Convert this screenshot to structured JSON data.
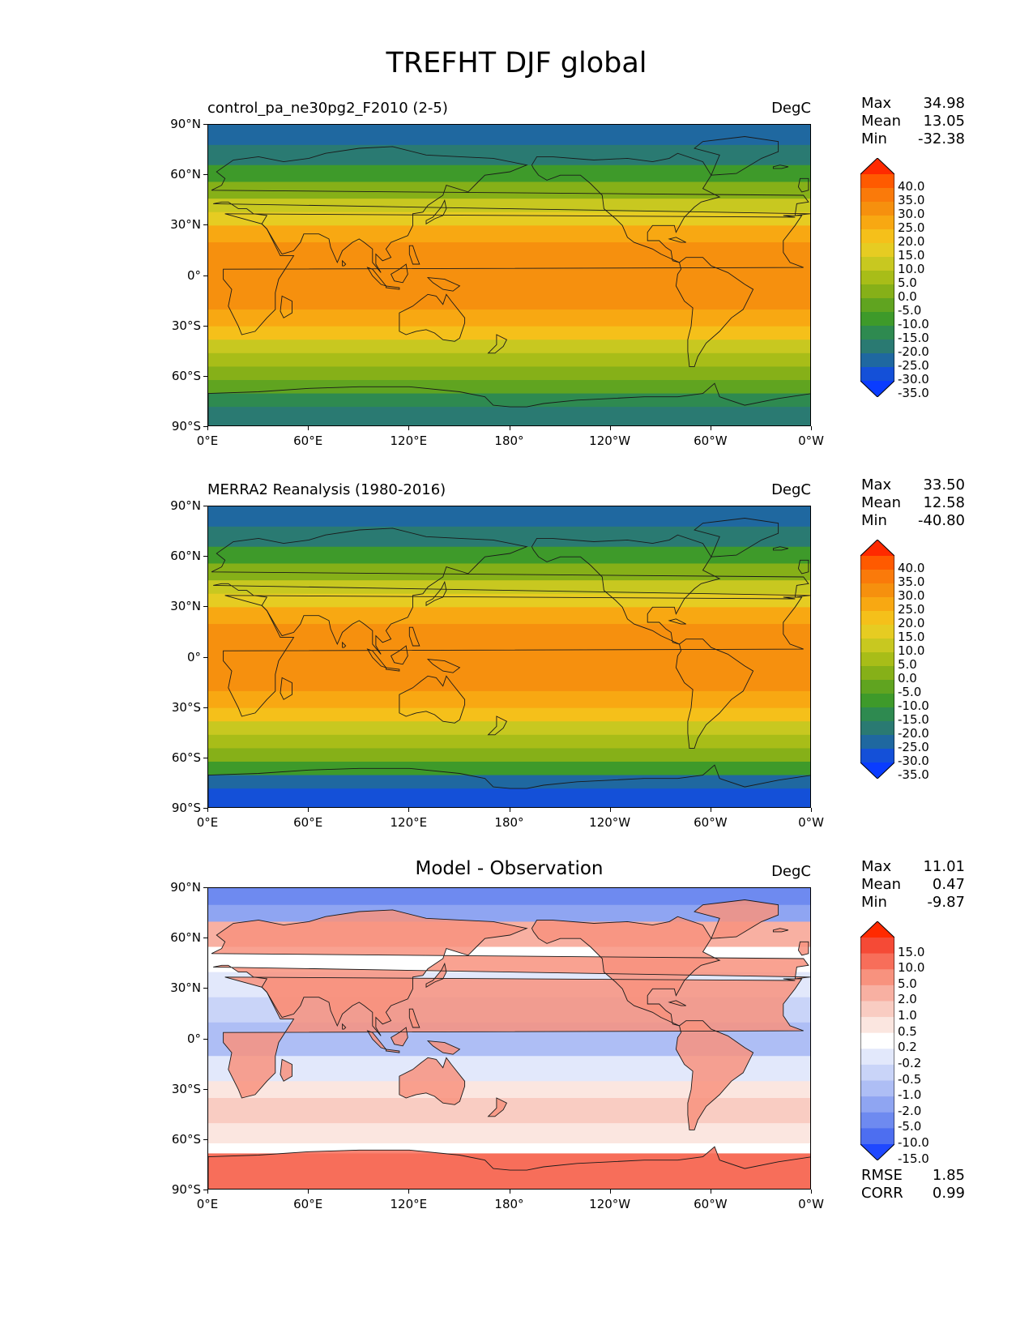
{
  "title": "TREFHT DJF global",
  "axes": {
    "lat_ticks": [
      "90°N",
      "60°N",
      "30°N",
      "0°",
      "30°S",
      "60°S",
      "90°S"
    ],
    "lon_ticks": [
      "0°E",
      "60°E",
      "120°E",
      "180°",
      "120°W",
      "60°W",
      "0°W"
    ]
  },
  "panels": [
    {
      "title_left": "control_pa_ne30pg2_F2010 (2-5)",
      "title_center": "",
      "units": "DegC",
      "stats": [
        {
          "label": "Max",
          "value": "34.98"
        },
        {
          "label": "Mean",
          "value": "13.05"
        },
        {
          "label": "Min",
          "value": "-32.38"
        }
      ],
      "colorbar_levels": [
        "40.0",
        "35.0",
        "30.0",
        "25.0",
        "20.0",
        "15.0",
        "10.0",
        "5.0",
        "0.0",
        "-5.0",
        "-10.0",
        "-15.0",
        "-20.0",
        "-25.0",
        "-30.0",
        "-35.0"
      ],
      "colorbar_colors": [
        "#ff2a00",
        "#ff5a00",
        "#fa7a0a",
        "#f6900e",
        "#f8a812",
        "#f5c01a",
        "#e6cc22",
        "#c8c820",
        "#a8bd18",
        "#86b018",
        "#60a420",
        "#3e9a2a",
        "#2e8a50",
        "#2a7a72",
        "#1f68a0",
        "#1450d8",
        "#0a3cff"
      ],
      "map_type": "temperature"
    },
    {
      "title_left": "MERRA2 Reanalysis (1980-2016)",
      "title_center": "",
      "units": "DegC",
      "stats": [
        {
          "label": "Max",
          "value": "33.50"
        },
        {
          "label": "Mean",
          "value": "12.58"
        },
        {
          "label": "Min",
          "value": "-40.80"
        }
      ],
      "colorbar_levels": [
        "40.0",
        "35.0",
        "30.0",
        "25.0",
        "20.0",
        "15.0",
        "10.0",
        "5.0",
        "0.0",
        "-5.0",
        "-10.0",
        "-15.0",
        "-20.0",
        "-25.0",
        "-30.0",
        "-35.0"
      ],
      "colorbar_colors": [
        "#ff2a00",
        "#ff5a00",
        "#fa7a0a",
        "#f6900e",
        "#f8a812",
        "#f5c01a",
        "#e6cc22",
        "#c8c820",
        "#a8bd18",
        "#86b018",
        "#60a420",
        "#3e9a2a",
        "#2e8a50",
        "#2a7a72",
        "#1f68a0",
        "#1450d8",
        "#0a3cff"
      ],
      "map_type": "temperature"
    },
    {
      "title_left": "",
      "title_center": "Model - Observation",
      "units": "DegC",
      "stats": [
        {
          "label": "Max",
          "value": "11.01"
        },
        {
          "label": "Mean",
          "value": "0.47"
        },
        {
          "label": "Min",
          "value": "-9.87"
        }
      ],
      "colorbar_levels": [
        "15.0",
        "10.0",
        "5.0",
        "2.0",
        "1.0",
        "0.5",
        "0.2",
        "-0.2",
        "-0.5",
        "-1.0",
        "-2.0",
        "-5.0",
        "-10.0",
        "-15.0"
      ],
      "colorbar_colors": [
        "#ff2a00",
        "#f54a36",
        "#f76e5a",
        "#f8927e",
        "#f8b0a2",
        "#f9ccc2",
        "#fbe6e0",
        "#ffffff",
        "#e2e8fb",
        "#c9d4f8",
        "#aebef5",
        "#8fa5f2",
        "#6e8af0",
        "#4d6ef0",
        "#1f48ff"
      ],
      "map_type": "difference",
      "extra_stats": [
        {
          "label": "RMSE",
          "value": "1.85"
        },
        {
          "label": "CORR",
          "value": "0.99"
        }
      ]
    }
  ]
}
